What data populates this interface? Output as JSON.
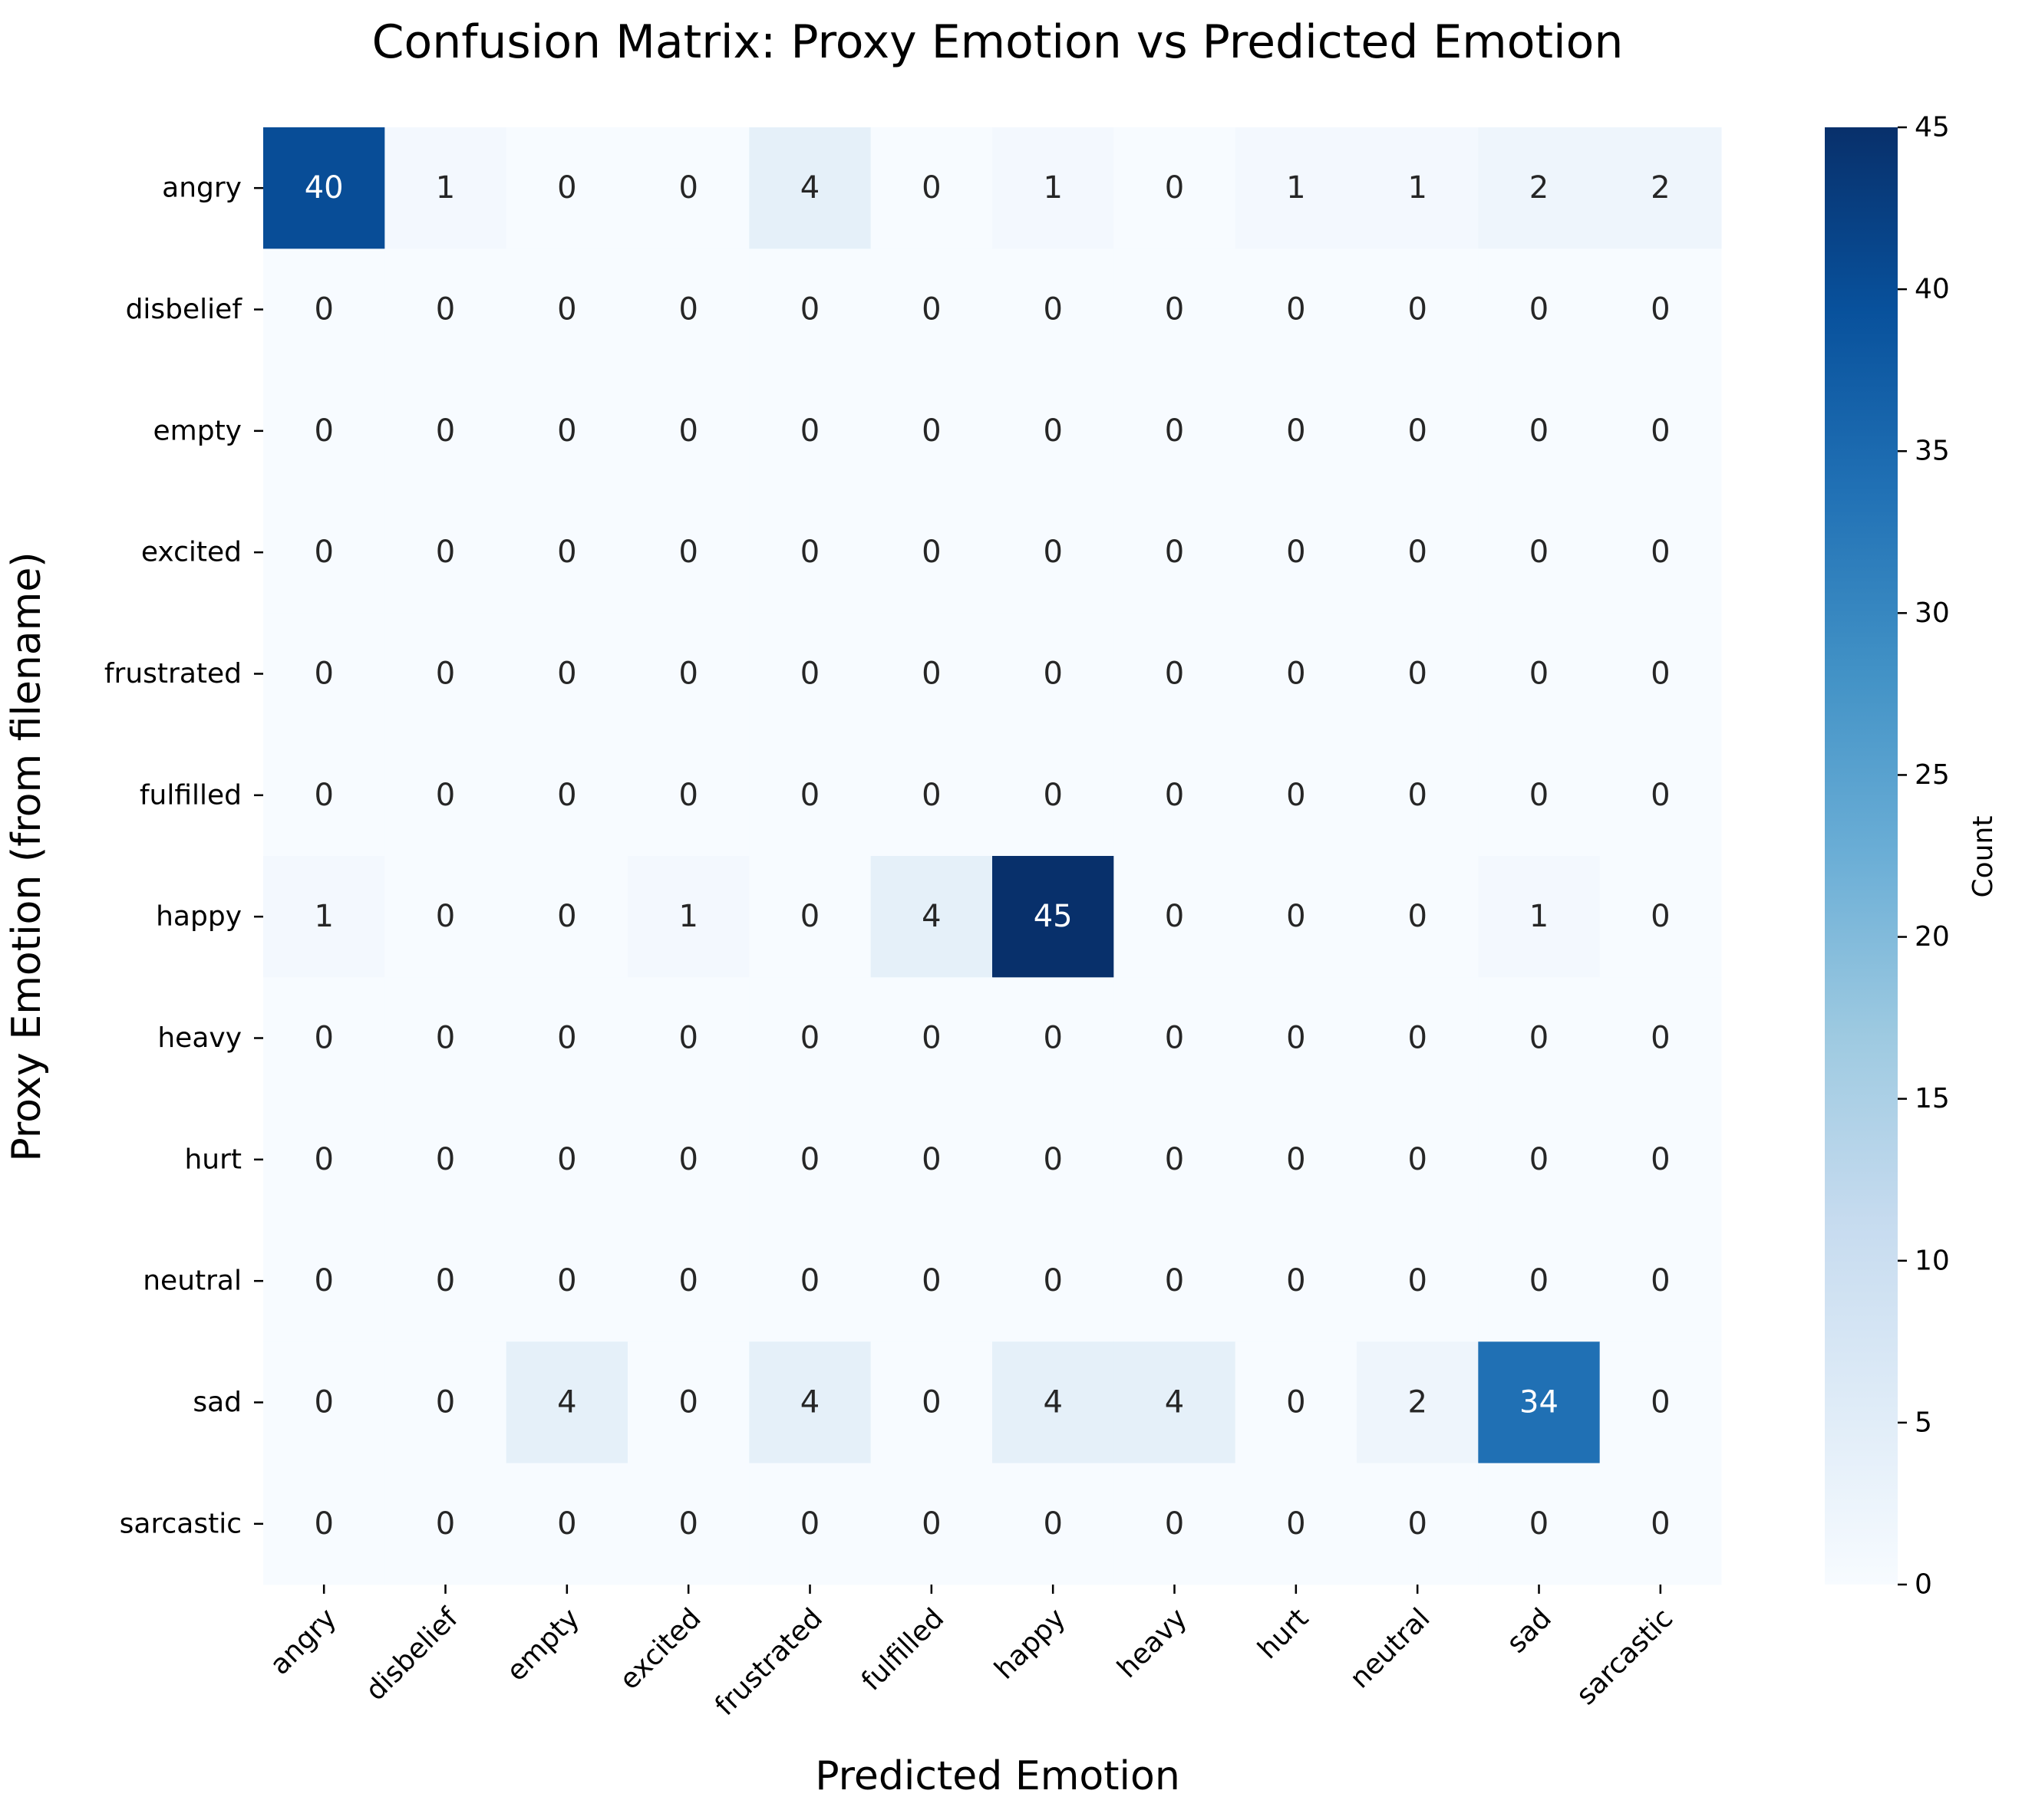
{
  "chart_data": {
    "type": "heatmap",
    "title": "Confusion Matrix: Proxy Emotion vs Predicted Emotion",
    "xlabel": "Predicted Emotion",
    "ylabel": "Proxy Emotion (from filename)",
    "x_categories": [
      "angry",
      "disbelief",
      "empty",
      "excited",
      "frustrated",
      "fulfilled",
      "happy",
      "heavy",
      "hurt",
      "neutral",
      "sad",
      "sarcastic"
    ],
    "y_categories": [
      "angry",
      "disbelief",
      "empty",
      "excited",
      "frustrated",
      "fulfilled",
      "happy",
      "heavy",
      "hurt",
      "neutral",
      "sad",
      "sarcastic"
    ],
    "values": [
      [
        40,
        1,
        0,
        0,
        4,
        0,
        1,
        0,
        1,
        1,
        2,
        2
      ],
      [
        0,
        0,
        0,
        0,
        0,
        0,
        0,
        0,
        0,
        0,
        0,
        0
      ],
      [
        0,
        0,
        0,
        0,
        0,
        0,
        0,
        0,
        0,
        0,
        0,
        0
      ],
      [
        0,
        0,
        0,
        0,
        0,
        0,
        0,
        0,
        0,
        0,
        0,
        0
      ],
      [
        0,
        0,
        0,
        0,
        0,
        0,
        0,
        0,
        0,
        0,
        0,
        0
      ],
      [
        0,
        0,
        0,
        0,
        0,
        0,
        0,
        0,
        0,
        0,
        0,
        0
      ],
      [
        1,
        0,
        0,
        1,
        0,
        4,
        45,
        0,
        0,
        0,
        1,
        0
      ],
      [
        0,
        0,
        0,
        0,
        0,
        0,
        0,
        0,
        0,
        0,
        0,
        0
      ],
      [
        0,
        0,
        0,
        0,
        0,
        0,
        0,
        0,
        0,
        0,
        0,
        0
      ],
      [
        0,
        0,
        0,
        0,
        0,
        0,
        0,
        0,
        0,
        0,
        0,
        0
      ],
      [
        0,
        0,
        4,
        0,
        4,
        0,
        4,
        4,
        0,
        2,
        34,
        0
      ],
      [
        0,
        0,
        0,
        0,
        0,
        0,
        0,
        0,
        0,
        0,
        0,
        0
      ]
    ],
    "colorbar": {
      "label": "Count",
      "range": [
        0,
        45
      ],
      "ticks": [
        0,
        5,
        10,
        15,
        20,
        25,
        30,
        35,
        40,
        45
      ]
    },
    "colormap": "Blues",
    "colors": [
      "#f7fbff",
      "#deebf7",
      "#c6dbef",
      "#9ecae1",
      "#6baed6",
      "#4292c6",
      "#2171b5",
      "#08519c",
      "#08306b"
    ]
  }
}
